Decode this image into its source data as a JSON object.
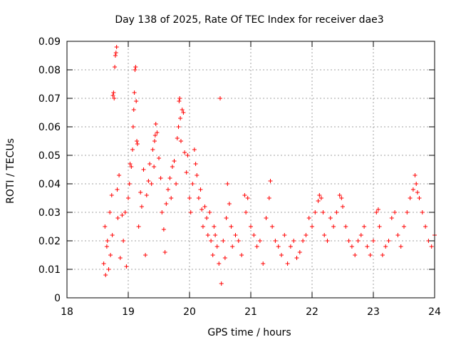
{
  "chart_data": {
    "type": "scatter",
    "title": "Day 138 of 2025, Rate Of TEC Index for receiver dae3",
    "xlabel": "GPS time / hours",
    "ylabel": "ROTI / TECUs",
    "xlim": [
      18,
      24
    ],
    "ylim": [
      0,
      0.09
    ],
    "x_ticks": [
      18,
      19,
      20,
      21,
      22,
      23,
      24
    ],
    "x_tick_labels": [
      "18",
      "19",
      "20",
      "21",
      "22",
      "23",
      "24"
    ],
    "y_ticks": [
      0,
      0.01,
      0.02,
      0.03,
      0.04,
      0.05,
      0.06,
      0.07,
      0.08,
      0.09
    ],
    "y_tick_labels": [
      "0",
      "0.01",
      "0.02",
      "0.03",
      "0.04",
      "0.05",
      "0.06",
      "0.07",
      "0.08",
      "0.09"
    ],
    "grid": true,
    "marker": "+",
    "marker_color": "#ff0000",
    "series": [
      {
        "name": "ROTI",
        "points": [
          [
            18.6,
            0.012
          ],
          [
            18.62,
            0.025
          ],
          [
            18.63,
            0.008
          ],
          [
            18.65,
            0.018
          ],
          [
            18.66,
            0.02
          ],
          [
            18.68,
            0.01
          ],
          [
            18.7,
            0.03
          ],
          [
            18.71,
            0.015
          ],
          [
            18.73,
            0.036
          ],
          [
            18.74,
            0.022
          ],
          [
            18.75,
            0.071
          ],
          [
            18.76,
            0.072
          ],
          [
            18.77,
            0.07
          ],
          [
            18.78,
            0.081
          ],
          [
            18.79,
            0.085
          ],
          [
            18.8,
            0.086
          ],
          [
            18.81,
            0.088
          ],
          [
            18.82,
            0.038
          ],
          [
            18.83,
            0.028
          ],
          [
            18.85,
            0.043
          ],
          [
            18.87,
            0.014
          ],
          [
            18.9,
            0.029
          ],
          [
            18.92,
            0.02
          ],
          [
            18.95,
            0.03
          ],
          [
            18.97,
            0.011
          ],
          [
            19.0,
            0.035
          ],
          [
            19.02,
            0.04
          ],
          [
            19.03,
            0.047
          ],
          [
            19.05,
            0.046
          ],
          [
            19.07,
            0.052
          ],
          [
            19.08,
            0.06
          ],
          [
            19.09,
            0.066
          ],
          [
            19.1,
            0.072
          ],
          [
            19.11,
            0.08
          ],
          [
            19.12,
            0.081
          ],
          [
            19.13,
            0.069
          ],
          [
            19.14,
            0.055
          ],
          [
            19.15,
            0.054
          ],
          [
            19.17,
            0.025
          ],
          [
            19.2,
            0.037
          ],
          [
            19.22,
            0.032
          ],
          [
            19.25,
            0.045
          ],
          [
            19.28,
            0.015
          ],
          [
            19.3,
            0.036
          ],
          [
            19.33,
            0.041
          ],
          [
            19.35,
            0.047
          ],
          [
            19.38,
            0.04
          ],
          [
            19.4,
            0.052
          ],
          [
            19.42,
            0.046
          ],
          [
            19.43,
            0.055
          ],
          [
            19.44,
            0.057
          ],
          [
            19.45,
            0.061
          ],
          [
            19.47,
            0.058
          ],
          [
            19.5,
            0.049
          ],
          [
            19.53,
            0.042
          ],
          [
            19.55,
            0.03
          ],
          [
            19.58,
            0.024
          ],
          [
            19.6,
            0.016
          ],
          [
            19.62,
            0.033
          ],
          [
            19.65,
            0.038
          ],
          [
            19.68,
            0.042
          ],
          [
            19.7,
            0.035
          ],
          [
            19.72,
            0.046
          ],
          [
            19.75,
            0.048
          ],
          [
            19.78,
            0.04
          ],
          [
            19.8,
            0.056
          ],
          [
            19.82,
            0.06
          ],
          [
            19.83,
            0.069
          ],
          [
            19.84,
            0.07
          ],
          [
            19.85,
            0.063
          ],
          [
            19.86,
            0.055
          ],
          [
            19.88,
            0.066
          ],
          [
            19.9,
            0.065
          ],
          [
            19.92,
            0.051
          ],
          [
            19.95,
            0.044
          ],
          [
            19.97,
            0.05
          ],
          [
            20.0,
            0.035
          ],
          [
            20.02,
            0.03
          ],
          [
            20.05,
            0.04
          ],
          [
            20.08,
            0.052
          ],
          [
            20.1,
            0.047
          ],
          [
            20.12,
            0.043
          ],
          [
            20.15,
            0.035
          ],
          [
            20.18,
            0.038
          ],
          [
            20.2,
            0.031
          ],
          [
            20.22,
            0.025
          ],
          [
            20.25,
            0.032
          ],
          [
            20.28,
            0.028
          ],
          [
            20.3,
            0.022
          ],
          [
            20.33,
            0.03
          ],
          [
            20.35,
            0.02
          ],
          [
            20.38,
            0.015
          ],
          [
            20.4,
            0.025
          ],
          [
            20.42,
            0.022
          ],
          [
            20.45,
            0.018
          ],
          [
            20.48,
            0.012
          ],
          [
            20.5,
            0.07
          ],
          [
            20.52,
            0.005
          ],
          [
            20.55,
            0.02
          ],
          [
            20.58,
            0.014
          ],
          [
            20.6,
            0.028
          ],
          [
            20.62,
            0.04
          ],
          [
            20.65,
            0.033
          ],
          [
            20.68,
            0.025
          ],
          [
            20.7,
            0.018
          ],
          [
            20.75,
            0.022
          ],
          [
            20.8,
            0.02
          ],
          [
            20.85,
            0.015
          ],
          [
            20.9,
            0.036
          ],
          [
            20.92,
            0.03
          ],
          [
            20.95,
            0.035
          ],
          [
            21.0,
            0.025
          ],
          [
            21.05,
            0.022
          ],
          [
            21.1,
            0.018
          ],
          [
            21.15,
            0.02
          ],
          [
            21.2,
            0.012
          ],
          [
            21.25,
            0.028
          ],
          [
            21.3,
            0.035
          ],
          [
            21.32,
            0.041
          ],
          [
            21.35,
            0.025
          ],
          [
            21.4,
            0.02
          ],
          [
            21.45,
            0.018
          ],
          [
            21.5,
            0.015
          ],
          [
            21.55,
            0.022
          ],
          [
            21.6,
            0.012
          ],
          [
            21.65,
            0.018
          ],
          [
            21.7,
            0.02
          ],
          [
            21.75,
            0.014
          ],
          [
            21.8,
            0.016
          ],
          [
            21.85,
            0.02
          ],
          [
            21.9,
            0.022
          ],
          [
            21.95,
            0.028
          ],
          [
            22.0,
            0.025
          ],
          [
            22.05,
            0.03
          ],
          [
            22.1,
            0.034
          ],
          [
            22.12,
            0.036
          ],
          [
            22.15,
            0.035
          ],
          [
            22.18,
            0.03
          ],
          [
            22.2,
            0.022
          ],
          [
            22.25,
            0.02
          ],
          [
            22.3,
            0.028
          ],
          [
            22.35,
            0.025
          ],
          [
            22.4,
            0.03
          ],
          [
            22.45,
            0.036
          ],
          [
            22.48,
            0.035
          ],
          [
            22.5,
            0.032
          ],
          [
            22.55,
            0.025
          ],
          [
            22.6,
            0.02
          ],
          [
            22.65,
            0.018
          ],
          [
            22.7,
            0.015
          ],
          [
            22.75,
            0.02
          ],
          [
            22.8,
            0.022
          ],
          [
            22.85,
            0.025
          ],
          [
            22.9,
            0.018
          ],
          [
            22.95,
            0.015
          ],
          [
            23.0,
            0.02
          ],
          [
            23.05,
            0.03
          ],
          [
            23.08,
            0.031
          ],
          [
            23.1,
            0.025
          ],
          [
            23.15,
            0.015
          ],
          [
            23.2,
            0.018
          ],
          [
            23.25,
            0.02
          ],
          [
            23.3,
            0.028
          ],
          [
            23.35,
            0.03
          ],
          [
            23.4,
            0.022
          ],
          [
            23.45,
            0.018
          ],
          [
            23.5,
            0.025
          ],
          [
            23.55,
            0.03
          ],
          [
            23.6,
            0.035
          ],
          [
            23.65,
            0.038
          ],
          [
            23.68,
            0.043
          ],
          [
            23.7,
            0.04
          ],
          [
            23.72,
            0.037
          ],
          [
            23.75,
            0.035
          ],
          [
            23.8,
            0.03
          ],
          [
            23.85,
            0.025
          ],
          [
            23.9,
            0.02
          ],
          [
            23.95,
            0.018
          ],
          [
            24.0,
            0.022
          ]
        ]
      }
    ]
  }
}
